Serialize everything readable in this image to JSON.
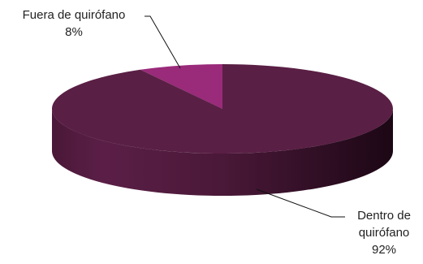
{
  "chart_data": {
    "type": "pie",
    "style": "3d",
    "title": "",
    "slices": [
      {
        "label": "Fuera de quirófano",
        "value": 8,
        "value_label": "8%",
        "color": "#9a2a7a"
      },
      {
        "label_line1": "Dentro de",
        "label_line2": "quirófano",
        "value": 92,
        "value_label": "92%",
        "color": "#5a1f45"
      }
    ],
    "legend": "none"
  }
}
